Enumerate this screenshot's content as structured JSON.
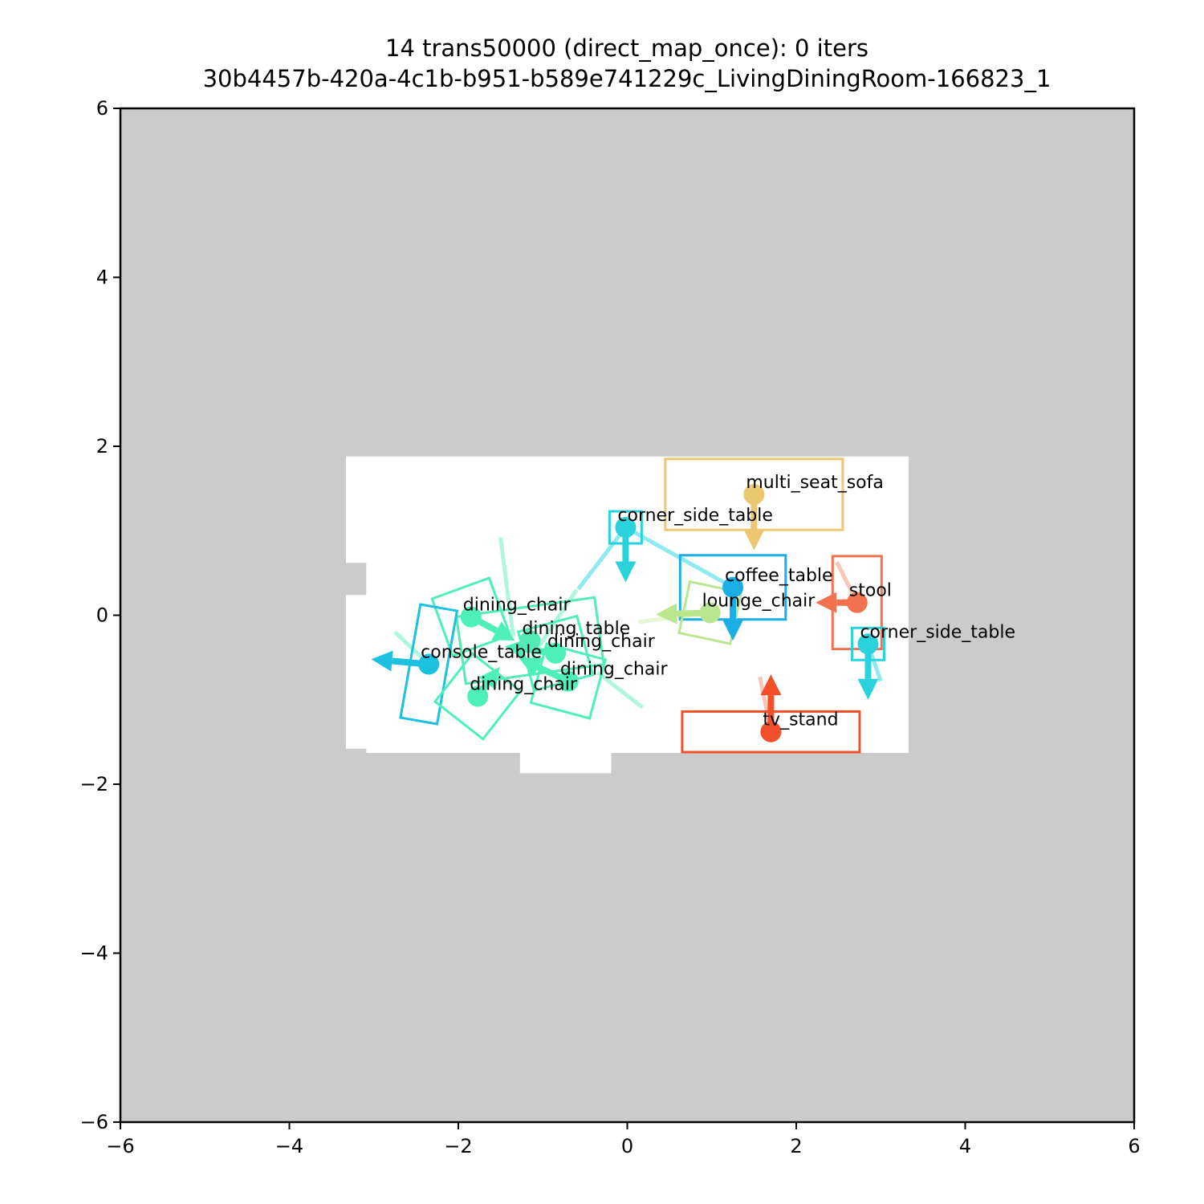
{
  "chart_data": {
    "type": "scatter",
    "title": "14 trans50000 (direct_map_once): 0 iters",
    "subtitle": "30b4457b-420a-4c1b-b951-b589e741229c_LivingDiningRoom-166823_1",
    "xlim": [
      -6,
      6
    ],
    "ylim": [
      -6,
      6
    ],
    "xticks": [
      "−6",
      "−4",
      "−2",
      "0",
      "2",
      "4",
      "6"
    ],
    "yticks": [
      "−6",
      "−4",
      "−2",
      "0",
      "2",
      "4",
      "6"
    ],
    "xtick_values": [
      -6,
      -4,
      -2,
      0,
      2,
      4,
      6
    ],
    "ytick_values": [
      -6,
      -4,
      -2,
      0,
      2,
      4,
      6
    ],
    "background_color": "#cbcbcb",
    "floor_color": "#ffffff",
    "floor_polygon": [
      [
        -3.33,
        1.88
      ],
      [
        3.33,
        1.88
      ],
      [
        3.33,
        -1.63
      ],
      [
        -0.19,
        -1.63
      ],
      [
        -0.19,
        -1.87
      ],
      [
        -1.27,
        -1.87
      ],
      [
        -1.27,
        -1.63
      ],
      [
        -3.09,
        -1.63
      ],
      [
        -3.09,
        -1.58
      ],
      [
        -3.33,
        -1.58
      ],
      [
        -3.33,
        0.24
      ],
      [
        -3.09,
        0.24
      ],
      [
        -3.09,
        0.62
      ],
      [
        -3.33,
        0.62
      ]
    ],
    "objects": [
      {
        "label": "multi_seat_sofa",
        "color": "#ebc772",
        "x": 1.5,
        "y": 1.43,
        "w": 2.1,
        "h": 0.84,
        "angle": 0,
        "dx": 0,
        "dy": -0.66
      },
      {
        "label": "corner_side_table",
        "color": "#2ad3dc",
        "x": -0.02,
        "y": 1.04,
        "w": 0.38,
        "h": 0.38,
        "angle": 0,
        "dx": 0,
        "dy": -0.65
      },
      {
        "label": "coffee_table",
        "color": "#1aaee4",
        "x": 1.25,
        "y": 0.33,
        "w": 1.25,
        "h": 0.76,
        "angle": 0,
        "dx": 0,
        "dy": -0.63
      },
      {
        "label": "stool",
        "color": "#f2724e",
        "x": 2.72,
        "y": 0.15,
        "w": 0.58,
        "h": 1.1,
        "angle": 0,
        "dx": -0.49,
        "dy": 0
      },
      {
        "label": "lounge_chair",
        "color": "#b9e68e",
        "x": 0.98,
        "y": 0.03,
        "w": 0.62,
        "h": 0.62,
        "angle": -12,
        "dx": -0.64,
        "dy": -0.02
      },
      {
        "label": "corner_side_table",
        "color": "#2ad3dc",
        "x": 2.85,
        "y": -0.34,
        "w": 0.38,
        "h": 0.38,
        "angle": 0,
        "dx": 0,
        "dy": -0.66
      },
      {
        "label": "dining_chair",
        "color": "#4ef0b9",
        "x": -1.85,
        "y": -0.02,
        "w": 0.72,
        "h": 0.72,
        "angle": 20,
        "dx": 0.52,
        "dy": -0.28
      },
      {
        "label": "dining_table",
        "color": "#52ecb6",
        "x": -1.15,
        "y": -0.3,
        "w": 0.8,
        "h": 1.65,
        "angle": -82,
        "dx": 0,
        "dy": 0
      },
      {
        "label": "dining_chair",
        "color": "#4ef0b9",
        "x": -0.85,
        "y": -0.45,
        "w": 0.72,
        "h": 0.72,
        "angle": 15,
        "dx": -0.6,
        "dy": 0.08
      },
      {
        "label": "dining_chair",
        "color": "#4ef0b9",
        "x": -0.7,
        "y": -0.78,
        "w": 0.72,
        "h": 0.72,
        "angle": -15,
        "dx": -0.58,
        "dy": 0.27
      },
      {
        "label": "console_table",
        "color": "#1bc1df",
        "x": -2.35,
        "y": -0.58,
        "w": 0.44,
        "h": 1.36,
        "angle": -10,
        "dx": -0.68,
        "dy": 0.06
      },
      {
        "label": "dining_chair",
        "color": "#4ef0b9",
        "x": -1.77,
        "y": -0.96,
        "w": 0.72,
        "h": 0.72,
        "angle": -38,
        "dx": 0.26,
        "dy": 0.35
      },
      {
        "label": "tv_stand",
        "color": "#f44f2b",
        "x": 1.7,
        "y": -1.38,
        "w": 2.1,
        "h": 0.48,
        "angle": 0,
        "dx": 0,
        "dy": 0.68
      }
    ],
    "traces": [
      {
        "color": "#9cf2d4",
        "points": [
          [
            -1.5,
            0.92
          ],
          [
            -1.35,
            -0.25
          ]
        ]
      },
      {
        "color": "#9cf2d4",
        "points": [
          [
            -0.35,
            -0.68
          ],
          [
            0.18,
            -1.09
          ]
        ]
      },
      {
        "color": "#9cf2d4",
        "points": [
          [
            -2.75,
            -0.2
          ],
          [
            -2.35,
            -0.58
          ]
        ]
      },
      {
        "color": "#9cf2d4",
        "points": [
          [
            -1.2,
            -0.6
          ],
          [
            -0.6,
            0.3
          ]
        ]
      },
      {
        "color": "#72e3ee",
        "points": [
          [
            -0.58,
            0.31
          ],
          [
            -0.02,
            1.04
          ],
          [
            1.25,
            0.33
          ]
        ]
      },
      {
        "color": "#ddf5c4",
        "points": [
          [
            0.13,
            -0.08
          ],
          [
            0.98,
            0.03
          ]
        ]
      },
      {
        "color": "#f7b6a4",
        "points": [
          [
            2.48,
            0.63
          ],
          [
            2.72,
            0.15
          ]
        ]
      },
      {
        "color": "#f7b6a4",
        "points": [
          [
            1.57,
            -0.73
          ],
          [
            1.7,
            -1.38
          ]
        ]
      },
      {
        "color": "#72e3ee",
        "points": [
          [
            2.85,
            -0.34
          ],
          [
            3.0,
            -0.78
          ]
        ]
      }
    ]
  }
}
